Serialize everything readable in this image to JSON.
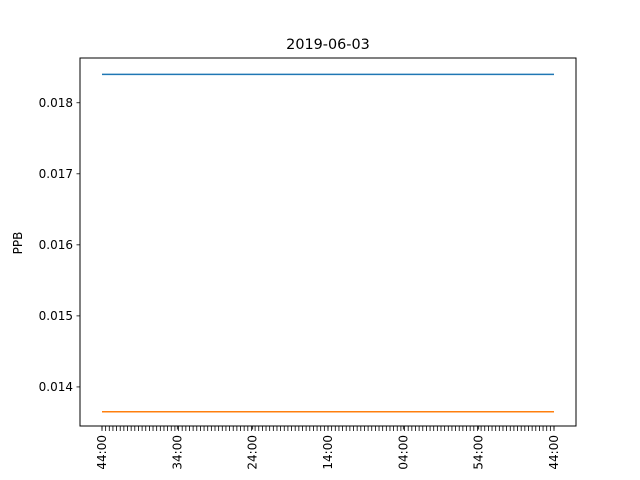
{
  "chart_data": {
    "type": "line",
    "title": "2019-06-03",
    "xlabel": "",
    "ylabel": "PPB",
    "x_tick_labels": [
      "44:00",
      "34:00",
      "24:00",
      "14:00",
      "04:00",
      "54:00",
      "44:00"
    ],
    "ylim": [
      0.01345,
      0.01863
    ],
    "y_ticks": [
      0.014,
      0.015,
      0.016,
      0.017,
      0.018
    ],
    "y_tick_labels": [
      "0.014",
      "0.015",
      "0.016",
      "0.017",
      "0.018"
    ],
    "minor_tick_count": 125,
    "grid": false,
    "series": [
      {
        "color": "#1f77b4",
        "values": [
          0.0184,
          0.0184
        ]
      },
      {
        "color": "#ff7f0e",
        "values": [
          0.01365,
          0.01365
        ]
      }
    ]
  }
}
